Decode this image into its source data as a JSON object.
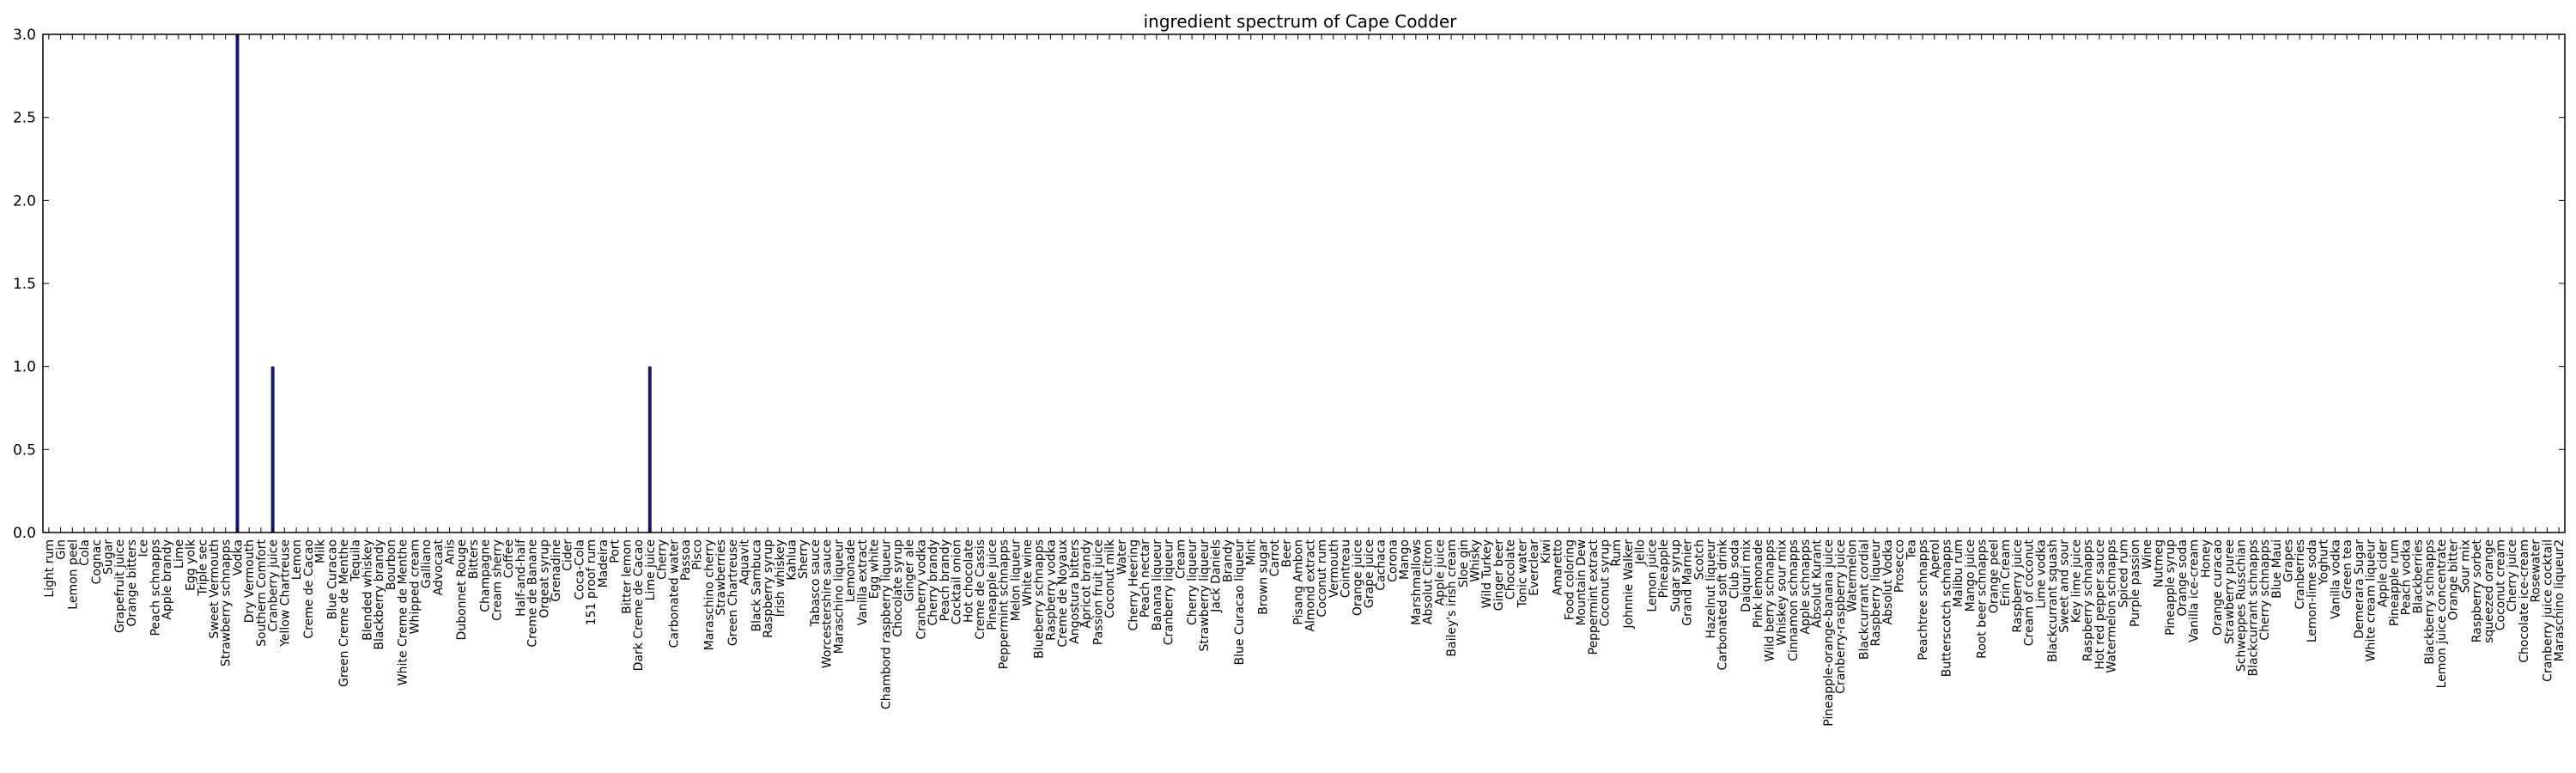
{
  "chart_data": {
    "type": "bar",
    "title": "ingredient spectrum of Cape Codder",
    "xlabel": "",
    "ylabel": "",
    "ylim": [
      0,
      3.0
    ],
    "yticks": [
      "0.0",
      "0.5",
      "1.0",
      "1.5",
      "2.0",
      "2.5",
      "3.0"
    ],
    "grid": false,
    "legend": "none",
    "bar_color": "#191970",
    "categories": [
      "Light rum",
      "Gin",
      "Lemon peel",
      "Cola",
      "Cognac",
      "Sugar",
      "Grapefruit juice",
      "Orange bitters",
      "Ice",
      "Peach schnapps",
      "Apple brandy",
      "Lime",
      "Egg yolk",
      "Triple sec",
      "Sweet Vermouth",
      "Strawberry schnapps",
      "Vodka",
      "Dry Vermouth",
      "Southern Comfort",
      "Cranberry juice",
      "Yellow Chartreuse",
      "Lemon",
      "Creme de Cacao",
      "Milk",
      "Blue Curacao",
      "Green Creme de Menthe",
      "Tequila",
      "Blended whiskey",
      "Blackberry brandy",
      "Bourbon",
      "White Creme de Menthe",
      "Whipped cream",
      "Galliano",
      "Advocaat",
      "Anis",
      "Dubonnet Rouge",
      "Bitters",
      "Champagne",
      "Cream sherry",
      "Coffee",
      "Half-and-half",
      "Creme de Banane",
      "Orgeat syrup",
      "Grenadine",
      "Cider",
      "Coca-Cola",
      "151 proof rum",
      "Madeira",
      "Port",
      "Bitter lemon",
      "Dark Creme de Cacao",
      "Lime juice",
      "Cherry",
      "Carbonated water",
      "Passoa",
      "Pisco",
      "Maraschino cherry",
      "Strawberries",
      "Green Chartreuse",
      "Aquavit",
      "Black Sambuca",
      "Raspberry syrup",
      "Irish whiskey",
      "Kahlua",
      "Sherry",
      "Tabasco sauce",
      "Worcestershire sauce",
      "Maraschino liqueur",
      "Lemonade",
      "Vanilla extract",
      "Egg white",
      "Chambord raspberry liqueur",
      "Chocolate syrup",
      "Ginger ale",
      "Cranberry vodka",
      "Cherry brandy",
      "Peach brandy",
      "Cocktail onion",
      "Hot chocolate",
      "Creme de Cassis",
      "Pineapple juice",
      "Peppermint schnapps",
      "Melon liqueur",
      "White wine",
      "Blueberry schnapps",
      "Raspberry vodka",
      "Creme de Noyaux",
      "Angostura bitters",
      "Apricot brandy",
      "Passion fruit juice",
      "Coconut milk",
      "Water",
      "Cherry Heering",
      "Peach nectar",
      "Banana liqueur",
      "Cranberry liqueur",
      "Cream",
      "Cherry liqueur",
      "Strawberry liqueur",
      "Jack Daniels",
      "Brandy",
      "Blue Curacao liqueur",
      "Mint",
      "Brown sugar",
      "Carrot",
      "Beer",
      "Pisang Ambon",
      "Almond extract",
      "Coconut rum",
      "Vermouth",
      "Cointreau",
      "Orange juice",
      "Grape juice",
      "Cachaca",
      "Corona",
      "Mango",
      "Marshmallows",
      "Absolut Citron",
      "Apple juice",
      "Bailey's irish cream",
      "Sloe gin",
      "Whisky",
      "Wild Turkey",
      "Ginger beer",
      "Chocolate",
      "Tonic water",
      "Everclear",
      "Kiwi",
      "Amaretto",
      "Food coloring",
      "Mountain Dew",
      "Peppermint extract",
      "Coconut syrup",
      "Rum",
      "Johnnie Walker",
      "Jello",
      "Lemon juice",
      "Pineapple",
      "Sugar syrup",
      "Grand Marnier",
      "Scotch",
      "Hazelnut liqueur",
      "Carbonated soft drink",
      "Club soda",
      "Daiquiri mix",
      "Pink lemonade",
      "Wild berry schnapps",
      "Whiskey sour mix",
      "Cinnamon schnapps",
      "Apple schnapps",
      "Absolut Kurant",
      "Pineapple-orange-banana juice",
      "Cranberry-raspberry juice",
      "Watermelon",
      "Blackcurrant cordial",
      "Raspberry liqueur",
      "Absolut Vodka",
      "Prosecco",
      "Tea",
      "Peachtree schnapps",
      "Aperol",
      "Butterscotch schnapps",
      "Malibu rum",
      "Mango juice",
      "Root beer schnapps",
      "Orange peel",
      "Erin Cream",
      "Raspberry juice",
      "Cream of coconut",
      "Lime vodka",
      "Blackcurrant squash",
      "Sweet and sour",
      "Key lime juice",
      "Raspberry schnapps",
      "Hot red pepper sauce",
      "Watermelon schnapps",
      "Spiced rum",
      "Purple passion",
      "Wine",
      "Nutmeg",
      "Pineapple syrup",
      "Orange soda",
      "Vanilla ice-cream",
      "Honey",
      "Orange curacao",
      "Strawberry puree",
      "Schweppes Russchian",
      "Blackcurrant schnapps",
      "Cherry schnapps",
      "Blue Maui",
      "Grapes",
      "Cranberries",
      "Lemon-lime soda",
      "Yoghurt",
      "Vanilla vodka",
      "Green tea",
      "Demerara Sugar",
      "White cream liqueur",
      "Apple cider",
      "Pineapple rum",
      "Peach vodka",
      "Blackberries",
      "Blackberry schnapps",
      "Lemon juice concentrate",
      "Orange bitter",
      "Sour mix",
      "Raspberry sorbet",
      "squeezed orange",
      "Coconut cream",
      "Cherry juice",
      "Chocolate ice-cream",
      "Rosewater",
      "Cranberry juice cocktail",
      "Maraschino liqueur2"
    ],
    "values": [
      0,
      0,
      0,
      0,
      0,
      0,
      0,
      0,
      0,
      0,
      0,
      0,
      0,
      0,
      0,
      0,
      3,
      0,
      0,
      1,
      0,
      0,
      0,
      0,
      0,
      0,
      0,
      0,
      0,
      0,
      0,
      0,
      0,
      0,
      0,
      0,
      0,
      0,
      0,
      0,
      0,
      0,
      0,
      0,
      0,
      0,
      0,
      0,
      0,
      0,
      0,
      1,
      0,
      0,
      0,
      0,
      0,
      0,
      0,
      0,
      0,
      0,
      0,
      0,
      0,
      0,
      0,
      0,
      0,
      0,
      0,
      0,
      0,
      0,
      0,
      0,
      0,
      0,
      0,
      0,
      0,
      0,
      0,
      0,
      0,
      0,
      0,
      0,
      0,
      0,
      0,
      0,
      0,
      0,
      0,
      0,
      0,
      0,
      0,
      0,
      0,
      0,
      0,
      0,
      0,
      0,
      0,
      0,
      0,
      0,
      0,
      0,
      0,
      0,
      0,
      0,
      0,
      0,
      0,
      0,
      0,
      0,
      0,
      0,
      0,
      0,
      0,
      0,
      0,
      0,
      0,
      0,
      0,
      0,
      0,
      0,
      0,
      0,
      0,
      0,
      0,
      0,
      0,
      0,
      0,
      0,
      0,
      0,
      0,
      0,
      0,
      0,
      0,
      0,
      0,
      0,
      0,
      0,
      0,
      0,
      0,
      0,
      0,
      0,
      0,
      0,
      0,
      0,
      0,
      0,
      0,
      0,
      0,
      0,
      0,
      0,
      0,
      0,
      0,
      0,
      0,
      0,
      0,
      0,
      0,
      0,
      0,
      0,
      0,
      0,
      0,
      0,
      0,
      0,
      0,
      0,
      0,
      0,
      0,
      0,
      0,
      0,
      0,
      0,
      0,
      0,
      0,
      0,
      0,
      0,
      0,
      0,
      0,
      0
    ]
  }
}
